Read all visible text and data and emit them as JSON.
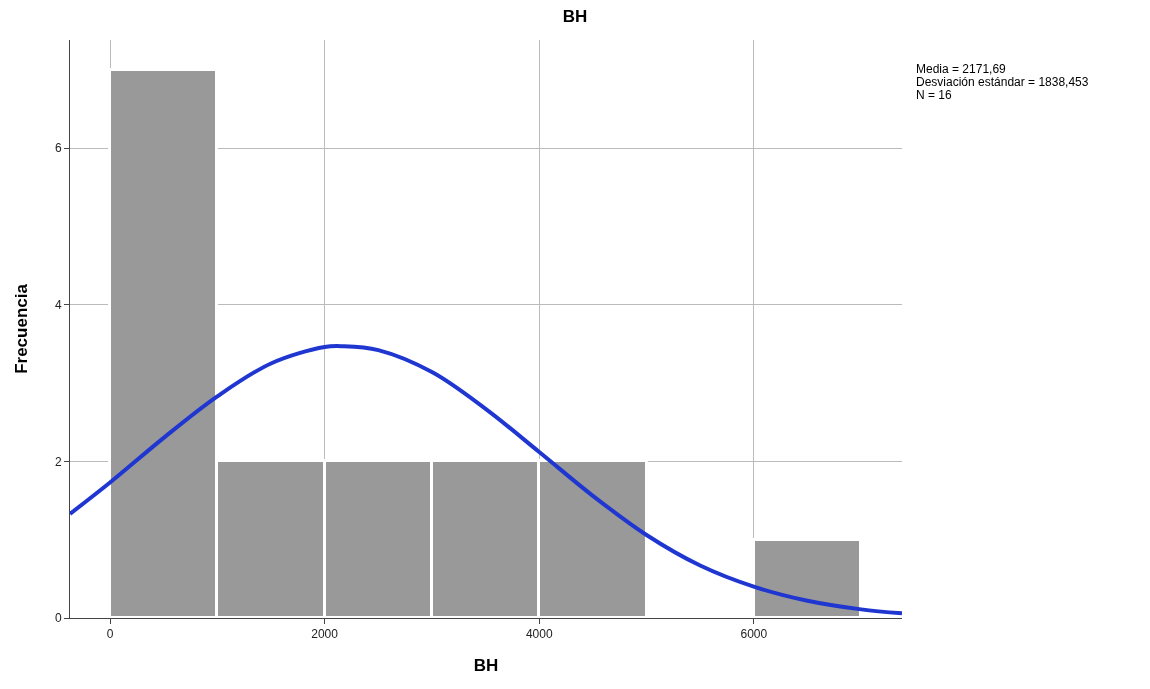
{
  "chart_data": {
    "type": "histogram",
    "title": "BH",
    "xlabel": "BH",
    "ylabel": "Frecuencia",
    "bins": [
      0,
      1000,
      2000,
      3000,
      4000,
      5000,
      6000,
      7000
    ],
    "values": [
      7,
      2,
      2,
      2,
      2,
      0,
      1
    ],
    "color": "#999999",
    "series": [
      {
        "type": "line",
        "color": "#1f36d1",
        "x": [
          -373,
          0,
          500,
          1000,
          1500,
          2000,
          2172,
          2500,
          3000,
          3500,
          4000,
          4500,
          5000,
          5500,
          6000,
          6500,
          7000,
          7381
        ],
        "values": [
          1.33,
          1.73,
          2.3,
          2.83,
          3.25,
          3.46,
          3.47,
          3.42,
          3.14,
          2.67,
          2.12,
          1.56,
          1.06,
          0.67,
          0.4,
          0.22,
          0.11,
          0.06
        ]
      }
    ],
    "xlim": [
      -373,
      7381
    ],
    "ylim": [
      0,
      7.38
    ],
    "xticks": [
      0,
      2000,
      4000,
      6000
    ],
    "yticks": [
      0,
      2,
      4,
      6
    ],
    "grid": true,
    "annotations": [
      "Media = 2171,69",
      "Desviación estándar = 1838,453",
      "N = 16"
    ]
  }
}
